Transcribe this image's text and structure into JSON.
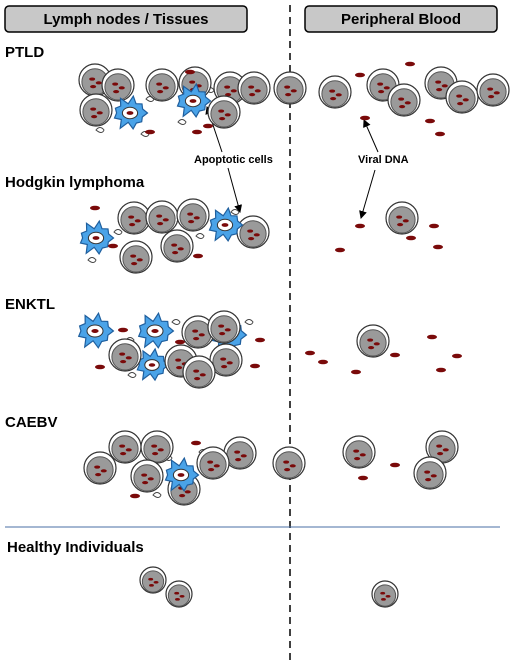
{
  "headers": {
    "left": "Lymph nodes / Tissues",
    "right": "Peripheral Blood"
  },
  "rows": [
    {
      "label": "PTLD"
    },
    {
      "label": "Hodgkin lymphoma"
    },
    {
      "label": "ENKTL"
    },
    {
      "label": "CAEBV"
    },
    {
      "label": "Healthy Individuals"
    }
  ],
  "annotations": {
    "apoptotic": "Apoptotic cells",
    "viral": "Viral DNA"
  },
  "colors": {
    "header_fill": "#c8c8c8",
    "cell_fill": "#9a9a9a",
    "nucleus": "#7a0a0a",
    "apoptotic_fill": "#4aa3e8",
    "apoptotic_stroke": "#1f5f9e",
    "divider": "#4a6fa5"
  }
}
